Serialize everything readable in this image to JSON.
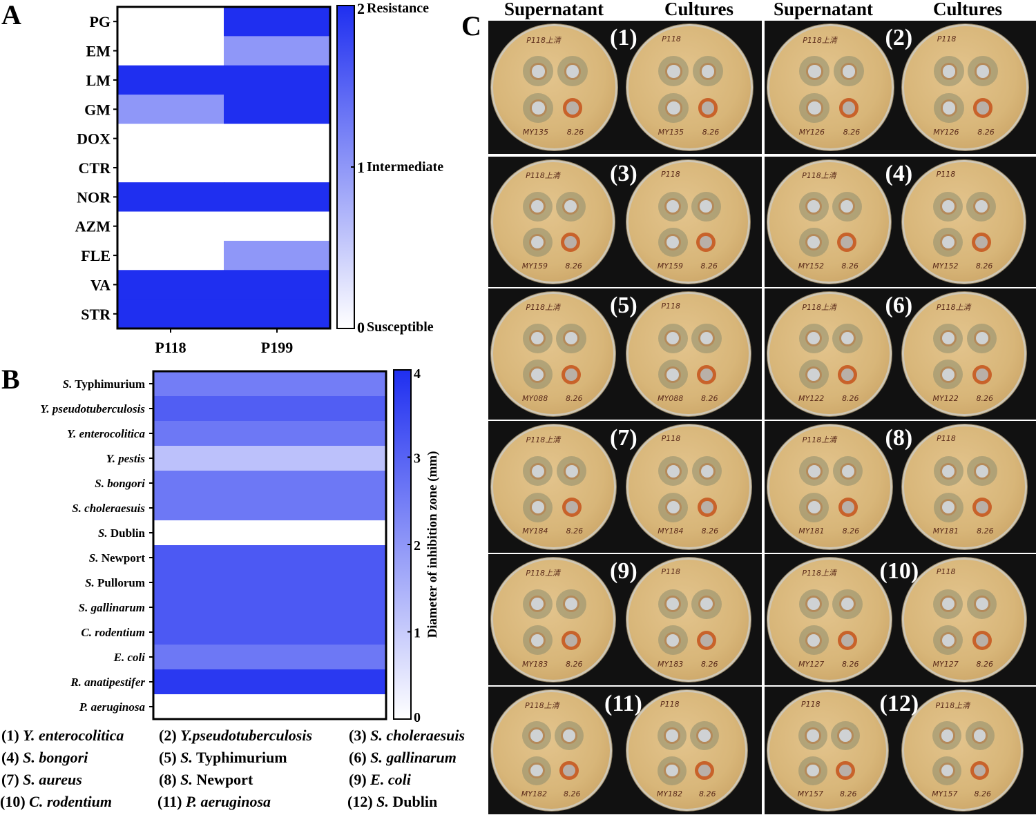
{
  "panel_letters": {
    "a": "A",
    "b": "B",
    "c": "C"
  },
  "chart_data": [
    {
      "type": "heatmap",
      "panel": "A",
      "rows": [
        "PG",
        "EM",
        "LM",
        "GM",
        "DOX",
        "CTR",
        "NOR",
        "AZM",
        "FLE",
        "VA",
        "STR"
      ],
      "columns": [
        "P118",
        "P199"
      ],
      "values": [
        [
          0,
          2
        ],
        [
          0,
          1
        ],
        [
          2,
          2
        ],
        [
          1,
          2
        ],
        [
          0,
          0
        ],
        [
          0,
          0
        ],
        [
          2,
          2
        ],
        [
          0,
          0
        ],
        [
          0,
          1
        ],
        [
          2,
          2
        ],
        [
          2,
          2
        ]
      ],
      "colorbar": {
        "range": [
          0,
          2
        ],
        "ticks": [
          {
            "value": 2,
            "label": "2",
            "text": "Resistance"
          },
          {
            "value": 1,
            "label": "1",
            "text": "Intermediate"
          },
          {
            "value": 0,
            "label": "0",
            "text": "Susceptible"
          }
        ],
        "color_low": "#ffffff",
        "color_high": "#1f2ff0"
      }
    },
    {
      "type": "heatmap",
      "panel": "B",
      "rows": [
        {
          "italic": "S.",
          "rest": " Typhimurium"
        },
        {
          "italic": "Y. pseudotuberculosis",
          "rest": ""
        },
        {
          "italic": "Y. enterocolitica",
          "rest": ""
        },
        {
          "italic": "Y. pestis",
          "rest": ""
        },
        {
          "italic": "S. bongori",
          "rest": ""
        },
        {
          "italic": "S. choleraesuis",
          "rest": ""
        },
        {
          "italic": "S.",
          "rest": " Dublin"
        },
        {
          "italic": "S.",
          "rest": " Newport"
        },
        {
          "italic": "S.",
          "rest": " Pullorum"
        },
        {
          "italic": "S. gallinarum",
          "rest": ""
        },
        {
          "italic": "C. rodentium",
          "rest": ""
        },
        {
          "italic": "E. coli",
          "rest": ""
        },
        {
          "italic": "R. anatipestifer",
          "rest": ""
        },
        {
          "italic": "P. aeruginosa",
          "rest": ""
        }
      ],
      "values": [
        2.5,
        3.1,
        2.6,
        1.2,
        2.6,
        2.6,
        0,
        3.2,
        3.2,
        3.2,
        3.2,
        2.6,
        3.8,
        0
      ],
      "colorbar": {
        "range": [
          0,
          4
        ],
        "ticks": [
          0,
          1,
          2,
          3,
          4
        ],
        "label": "Diameter of inhibition zone (mm)",
        "color_low": "#ffffff",
        "color_high": "#1f2ff0"
      }
    }
  ],
  "panel_c": {
    "headers": [
      "Supernatant",
      "Cultures",
      "Supernatant",
      "Cultures"
    ],
    "samples": [
      {
        "num": "(1)",
        "plates": [
          {
            "label": "P118上清",
            "id": "MY135",
            "date": "8.26"
          },
          {
            "label": "P118",
            "id": "MY135",
            "date": "8.26"
          }
        ]
      },
      {
        "num": "(2)",
        "plates": [
          {
            "label": "P118上清",
            "id": "MY126",
            "date": "8.26"
          },
          {
            "label": "P118",
            "id": "MY126",
            "date": "8.26"
          }
        ]
      },
      {
        "num": "(3)",
        "plates": [
          {
            "label": "P118上清",
            "id": "MY159",
            "date": "8.26"
          },
          {
            "label": "P118",
            "id": "MY159",
            "date": "8.26"
          }
        ]
      },
      {
        "num": "(4)",
        "plates": [
          {
            "label": "P118上清",
            "id": "MY152",
            "date": "8.26"
          },
          {
            "label": "P118",
            "id": "MY152",
            "date": "8.26"
          }
        ]
      },
      {
        "num": "(5)",
        "plates": [
          {
            "label": "P118上清",
            "id": "MY088",
            "date": "8.26"
          },
          {
            "label": "P118",
            "id": "MY088",
            "date": "8.26"
          }
        ]
      },
      {
        "num": "(6)",
        "plates": [
          {
            "label": "P118上清",
            "id": "MY122",
            "date": "8.26"
          },
          {
            "label": "P118上清",
            "id": "MY122",
            "date": "8.26"
          }
        ]
      },
      {
        "num": "(7)",
        "plates": [
          {
            "label": "P118上清",
            "id": "MY184",
            "date": "8.26"
          },
          {
            "label": "P118",
            "id": "MY184",
            "date": "8.26"
          }
        ]
      },
      {
        "num": "(8)",
        "plates": [
          {
            "label": "P118上清",
            "id": "MY181",
            "date": "8.26"
          },
          {
            "label": "P118",
            "id": "MY181",
            "date": "8.26"
          }
        ]
      },
      {
        "num": "(9)",
        "plates": [
          {
            "label": "P118上清",
            "id": "MY183",
            "date": "8.26"
          },
          {
            "label": "P118",
            "id": "MY183",
            "date": "8.26"
          }
        ]
      },
      {
        "num": "(10)",
        "plates": [
          {
            "label": "P118上清",
            "id": "MY127",
            "date": "8.26"
          },
          {
            "label": "P118",
            "id": "MY127",
            "date": "8.26"
          }
        ]
      },
      {
        "num": "(11)",
        "plates": [
          {
            "label": "P118上清",
            "id": "MY182",
            "date": "8.26"
          },
          {
            "label": "P118",
            "id": "MY182",
            "date": "8.26"
          }
        ]
      },
      {
        "num": "(12)",
        "plates": [
          {
            "label": "P118",
            "id": "MY157",
            "date": "8.26"
          },
          {
            "label": "P118上清",
            "id": "MY157",
            "date": "8.26"
          }
        ]
      }
    ]
  },
  "sample_legend": [
    {
      "num": "(1)",
      "italic": "Y. enterocolitica",
      "rest": ""
    },
    {
      "num": "(2)",
      "italic": "Y.pseudotuberculosis",
      "rest": ""
    },
    {
      "num": "(3)",
      "italic": "S. choleraesuis",
      "rest": ""
    },
    {
      "num": "(4)",
      "italic": "S. bongori",
      "rest": ""
    },
    {
      "num": "(5)",
      "italic": "S.",
      "rest": " Typhimurium"
    },
    {
      "num": "(6)",
      "italic": "S. gallinarum",
      "rest": ""
    },
    {
      "num": "(7)",
      "italic": "S. aureus",
      "rest": ""
    },
    {
      "num": "(8)",
      "italic": "S.",
      "rest": " Newport"
    },
    {
      "num": "(9)",
      "italic": "E. coli",
      "rest": ""
    },
    {
      "num": "(10)",
      "italic": "C. rodentium",
      "rest": ""
    },
    {
      "num": "(11)",
      "italic": "P. aeruginosa",
      "rest": ""
    },
    {
      "num": "(12)",
      "italic": "S.",
      "rest": " Dublin"
    }
  ]
}
